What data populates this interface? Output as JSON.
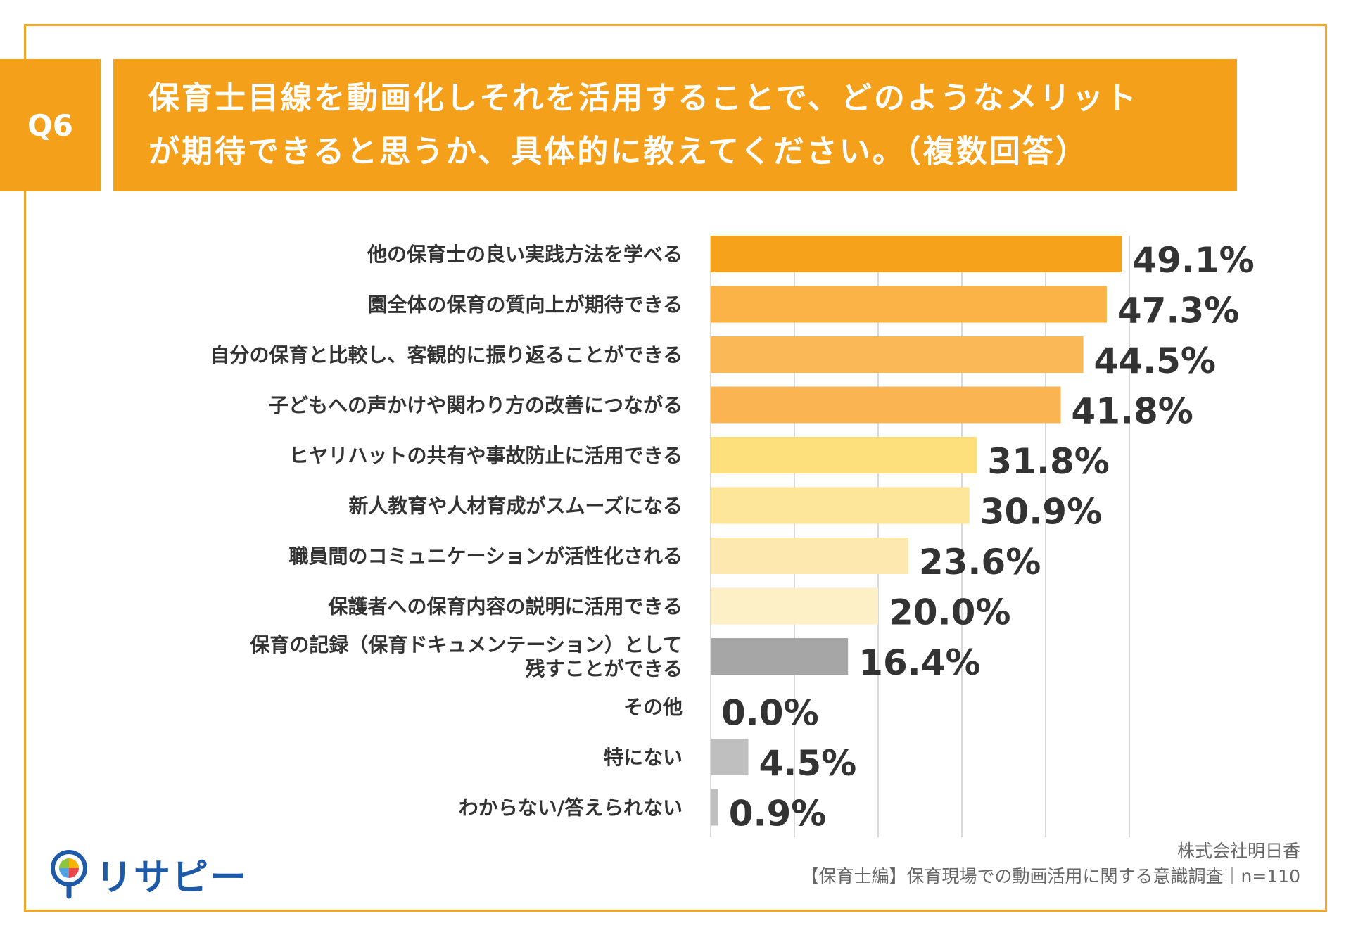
{
  "header": {
    "q_label": "Q6",
    "title_line1": "保育士目線を動画化しそれを活用することで、どのようなメリット",
    "title_line2": "が期待できると思うか、具体的に教えてください。（複数回答）"
  },
  "colors": {
    "accent": "#f5a01a",
    "frame": "#f5a623",
    "gridline": "#d9d9d9",
    "logo_blue": "#1e5aa8"
  },
  "chart_data": {
    "type": "bar",
    "orientation": "horizontal",
    "title": "",
    "xlabel": "",
    "ylabel": "",
    "grid": true,
    "categories": [
      "他の保育士の良い実践方法を学べる",
      "園全体の保育の質向上が期待できる",
      "自分の保育と比較し、客観的に振り返ることができる",
      "子どもへの声かけや関わり方の改善につながる",
      "ヒヤリハットの共有や事故防止に活用できる",
      "新人教育や人材育成がスムーズになる",
      "職員間のコミュニケーションが活性化される",
      "保護者への保育内容の説明に活用できる",
      "保育の記録（保育ドキュメンテーション）として\n残すことができる",
      "その他",
      "特にない",
      "わからない/答えられない"
    ],
    "values": [
      49.1,
      47.3,
      44.5,
      41.8,
      31.8,
      30.9,
      23.6,
      20.0,
      16.4,
      0.0,
      4.5,
      0.9
    ],
    "value_labels": [
      "49.1%",
      "47.3%",
      "44.5%",
      "41.8%",
      "31.8%",
      "30.9%",
      "23.6%",
      "20.0%",
      "16.4%",
      "0.0%",
      "4.5%",
      "0.9%"
    ],
    "bar_colors": [
      "#f7a21b",
      "#fbb347",
      "#fbb857",
      "#fbb452",
      "#fddf7c",
      "#fde59a",
      "#fde9b0",
      "#fef0c6",
      "#a6a6a6",
      "#bfbfbf",
      "#bfbfbf",
      "#bfbfbf"
    ],
    "xlim": [
      0,
      50
    ]
  },
  "footer": {
    "logo_text": "リサピー",
    "company": "株式会社明日香",
    "survey": "【保育士編】保育現場での動画活用に関する意識調査｜n=110"
  }
}
